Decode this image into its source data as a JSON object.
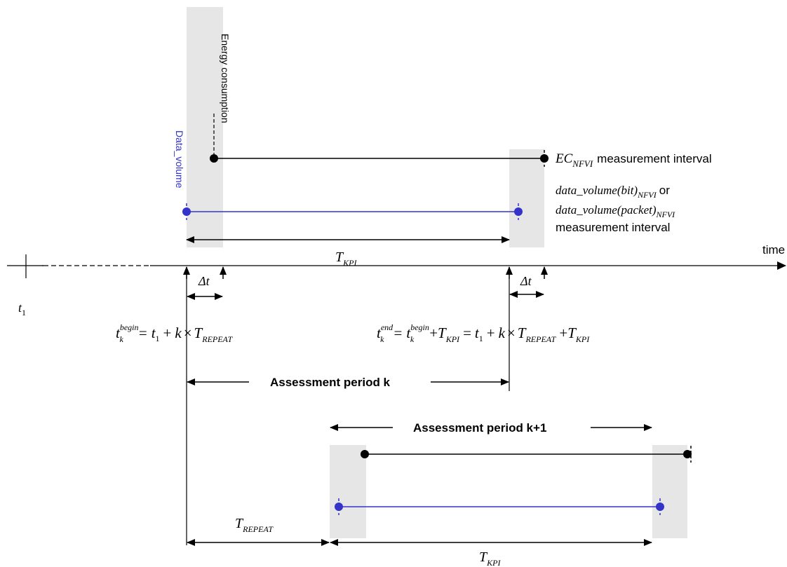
{
  "labels": {
    "energy_consumption": "Energy consumption",
    "data_volume": "Data_volume",
    "time": "time",
    "measurement_interval": "measurement interval",
    "or": "or",
    "assessment_period_k": "Assessment period k",
    "assessment_period_k1": "Assessment period k+1"
  },
  "symbols": {
    "t1_base": "t",
    "t1_sub": "1",
    "t": "t",
    "k": "k",
    "begin": "begin",
    "end": "end",
    "T": "T",
    "KPI": "KPI",
    "REPEAT": "REPEAT",
    "EC": "EC",
    "NFVI": "NFVI",
    "delta_t": "Δt",
    "data_volume_bit": "data_volume(bit)",
    "data_volume_packet": "data_volume(packet)",
    "eq": "=",
    "plus": "+",
    "times": "×",
    "one": "1"
  },
  "colors": {
    "blue": "#3333cc",
    "shade": "#e6e6e6",
    "black": "#000000"
  }
}
